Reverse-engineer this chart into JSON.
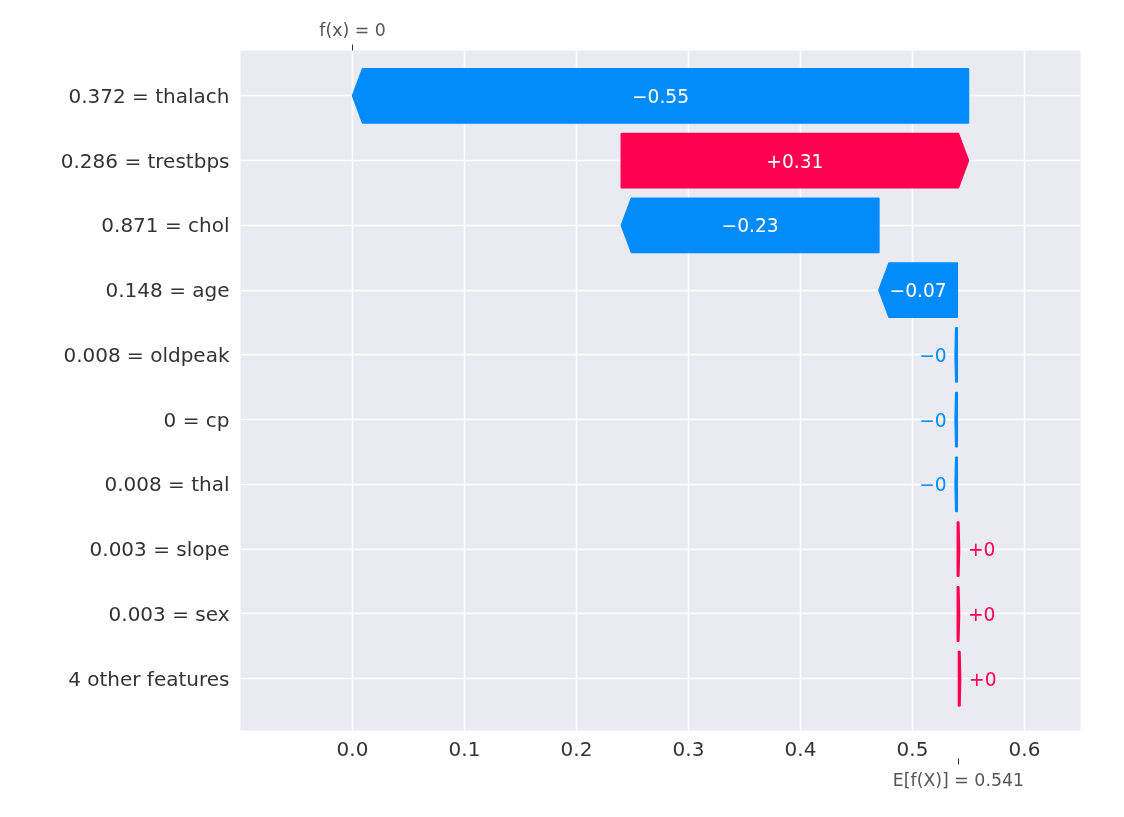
{
  "chart_data": {
    "type": "bar",
    "orientation": "horizontal",
    "categories": [
      "0.372 = thalach",
      "0.286 = trestbps",
      "0.871 = chol",
      "0.148 = age",
      "0.008 = oldpeak",
      "0 = cp",
      "0.008 = thal",
      "0.003 = slope",
      "0.003 = sex",
      "4 other features"
    ],
    "base": [
      0.55,
      0.24,
      0.47,
      0.54,
      0.54,
      0.54,
      0.54,
      0.54,
      0.54,
      0.541
    ],
    "values": [
      -0.55,
      0.31,
      -0.23,
      -0.07,
      -0.002,
      -0.002,
      -0.002,
      0.002,
      0.002,
      0.002
    ],
    "colors": [
      "#008bfb",
      "#ff0051",
      "#008bfb",
      "#008bfb",
      "#008bfb",
      "#008bfb",
      "#008bfb",
      "#ff0051",
      "#ff0051",
      "#ff0051"
    ],
    "value_labels": [
      "−0.55",
      "+0.31",
      "−0.23",
      "−0.07",
      "−0",
      "−0",
      "−0",
      "+0",
      "+0",
      "+0"
    ],
    "xlim": [
      -0.1,
      0.65
    ],
    "xticks": [
      {
        "value": 0,
        "label": "0.0"
      },
      {
        "value": 0.1,
        "label": "0.1"
      },
      {
        "value": 0.2,
        "label": "0.2"
      },
      {
        "value": 0.3,
        "label": "0.3"
      },
      {
        "value": 0.4,
        "label": "0.4"
      },
      {
        "value": 0.5,
        "label": "0.5"
      },
      {
        "value": 0.6,
        "label": "0.6"
      }
    ],
    "annotations": [
      {
        "text": "f(x) = 0",
        "x": 0
      },
      {
        "text": "E[f(X)] = 0.541",
        "x": 0.541
      }
    ],
    "grid": true
  }
}
